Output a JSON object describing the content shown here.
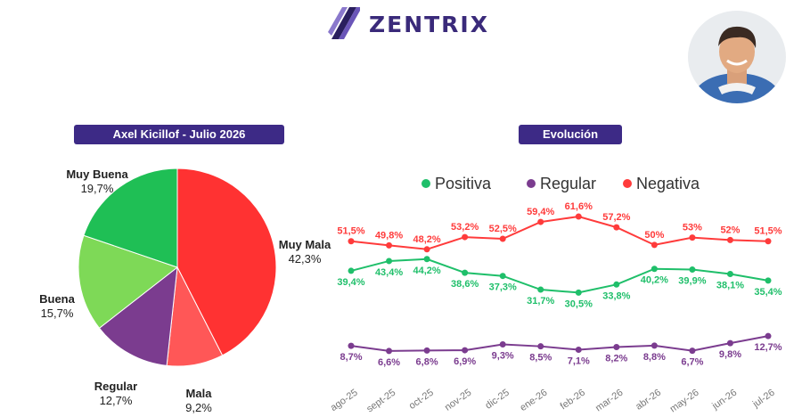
{
  "brand": {
    "name": "ZENTRIX",
    "accent": "#3d2a86"
  },
  "left_title": "Axel Kicillof - Julio 2026",
  "right_title": "Evolución",
  "chart_data": [
    {
      "type": "pie",
      "title": "Axel Kicillof - Julio 2026",
      "slices": [
        {
          "label": "Muy Mala",
          "value": 42.3,
          "display": "42,3%",
          "color": "#ff3232"
        },
        {
          "label": "Mala",
          "value": 9.2,
          "display": "9,2%",
          "color": "#ff5757"
        },
        {
          "label": "Regular",
          "value": 12.7,
          "display": "12,7%",
          "color": "#7b3c8f"
        },
        {
          "label": "Buena",
          "value": 15.7,
          "display": "15,7%",
          "color": "#7ed957"
        },
        {
          "label": "Muy Buena",
          "value": 19.7,
          "display": "19,7%",
          "color": "#1fbf55"
        }
      ]
    },
    {
      "type": "line",
      "title": "Evolución",
      "categories": [
        "ago-25",
        "sept-25",
        "oct-25",
        "nov-25",
        "dic-25",
        "ene-26",
        "feb-26",
        "mar-26",
        "abr-26",
        "may-26",
        "jun-26",
        "jul-26"
      ],
      "series": [
        {
          "name": "Positiva",
          "color": "#1fbf6a",
          "values": [
            39.4,
            43.4,
            44.2,
            38.6,
            37.3,
            31.7,
            30.5,
            33.8,
            40.2,
            39.9,
            38.1,
            35.4
          ],
          "labels": [
            "39,4%",
            "43,4%",
            "44,2%",
            "38,6%",
            "37,3%",
            "31,7%",
            "30,5%",
            "33,8%",
            "40,2%",
            "39,9%",
            "38,1%",
            "35,4%"
          ]
        },
        {
          "name": "Regular",
          "color": "#7b3c8f",
          "values": [
            8.7,
            6.6,
            6.8,
            6.9,
            9.3,
            8.5,
            7.1,
            8.2,
            8.8,
            6.7,
            9.8,
            12.7
          ],
          "labels": [
            "8,7%",
            "6,6%",
            "6,8%",
            "6,9%",
            "9,3%",
            "8,5%",
            "7,1%",
            "8,2%",
            "8,8%",
            "6,7%",
            "9,8%",
            "12,7%"
          ]
        },
        {
          "name": "Negativa",
          "color": "#ff3b3b",
          "values": [
            51.5,
            49.8,
            48.2,
            53.2,
            52.5,
            59.4,
            61.6,
            57.2,
            50,
            53,
            52,
            51.5
          ],
          "labels": [
            "51,5%",
            "49,8%",
            "48,2%",
            "53,2%",
            "52,5%",
            "59,4%",
            "61,6%",
            "57,2%",
            "50%",
            "53%",
            "52%",
            "51,5%"
          ]
        }
      ],
      "ylim": [
        0,
        70
      ],
      "legend_position": "top"
    }
  ]
}
